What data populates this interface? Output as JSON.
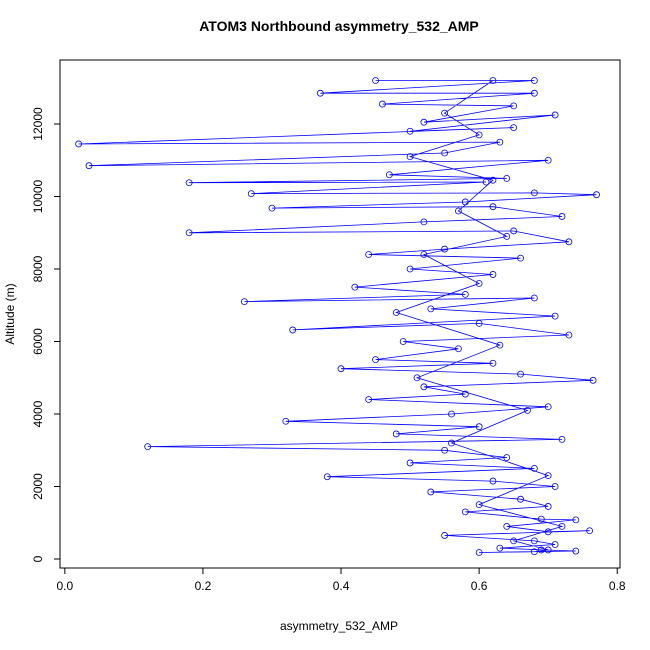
{
  "chart_data": {
    "type": "line",
    "title": "ATOM3 Northbound asymmetry_532_AMP",
    "x_label": "asymmetry_532_AMP",
    "y_label": "Altitude (m)",
    "color": "#0000ff",
    "markers": true,
    "x": [
      0.45,
      0.68,
      0.37,
      0.68,
      0.46,
      0.65,
      0.52,
      0.71,
      0.5,
      0.65,
      0.02,
      0.63,
      0.55,
      0.035,
      0.7,
      0.47,
      0.64,
      0.18,
      0.61,
      0.27,
      0.68,
      0.77,
      0.58,
      0.3,
      0.62,
      0.72,
      0.52,
      0.18,
      0.65,
      0.73,
      0.55,
      0.44,
      0.66,
      0.5,
      0.62,
      0.42,
      0.58,
      0.26,
      0.68,
      0.53,
      0.71,
      0.33,
      0.6,
      0.73,
      0.49,
      0.57,
      0.45,
      0.62,
      0.4,
      0.66,
      0.765,
      0.52,
      0.58,
      0.44,
      0.7,
      0.56,
      0.32,
      0.6,
      0.48,
      0.72,
      0.12,
      0.55,
      0.64,
      0.5,
      0.68,
      0.38,
      0.62,
      0.71,
      0.53,
      0.66,
      0.7,
      0.58,
      0.69,
      0.74,
      0.64,
      0.7,
      0.76,
      0.55,
      0.68,
      0.71,
      0.63,
      0.69,
      0.74,
      0.6,
      0.68,
      0.7,
      0.65,
      0.72,
      0.6,
      0.7,
      0.56,
      0.67,
      0.51,
      0.63,
      0.48,
      0.6,
      0.52,
      0.64,
      0.57,
      0.62,
      0.5,
      0.6,
      0.55,
      0.62
    ],
    "values": [
      13200,
      13200,
      12850,
      12850,
      12550,
      12500,
      12050,
      12250,
      11800,
      11900,
      11450,
      11500,
      11200,
      10850,
      11000,
      10600,
      10500,
      10380,
      10400,
      10080,
      10100,
      10050,
      9850,
      9680,
      9720,
      9450,
      9300,
      9000,
      9050,
      8750,
      8550,
      8400,
      8300,
      8000,
      7850,
      7500,
      7300,
      7100,
      7200,
      6900,
      6700,
      6320,
      6500,
      6180,
      6000,
      5800,
      5500,
      5400,
      5250,
      5100,
      4930,
      4750,
      4550,
      4400,
      4200,
      4000,
      3800,
      3650,
      3450,
      3300,
      3100,
      3000,
      2800,
      2650,
      2500,
      2270,
      2150,
      2000,
      1850,
      1650,
      1450,
      1300,
      1100,
      1080,
      900,
      750,
      780,
      650,
      500,
      400,
      300,
      250,
      220,
      180,
      200,
      250,
      500,
      900,
      1500,
      2300,
      3200,
      4100,
      5000,
      5900,
      6800,
      7600,
      8400,
      8900,
      9600,
      10450,
      11100,
      11700,
      12300,
      13200
    ],
    "xlim": [
      -0.007,
      0.804
    ],
    "xticks": [
      {
        "value": 0,
        "label": "0.0"
      },
      0.2,
      0.4,
      0.6,
      0.8
    ],
    "ylim": [
      -248,
      13766
    ],
    "yticks": [
      0,
      2000,
      4000,
      6000,
      8000,
      10000,
      12000
    ]
  }
}
